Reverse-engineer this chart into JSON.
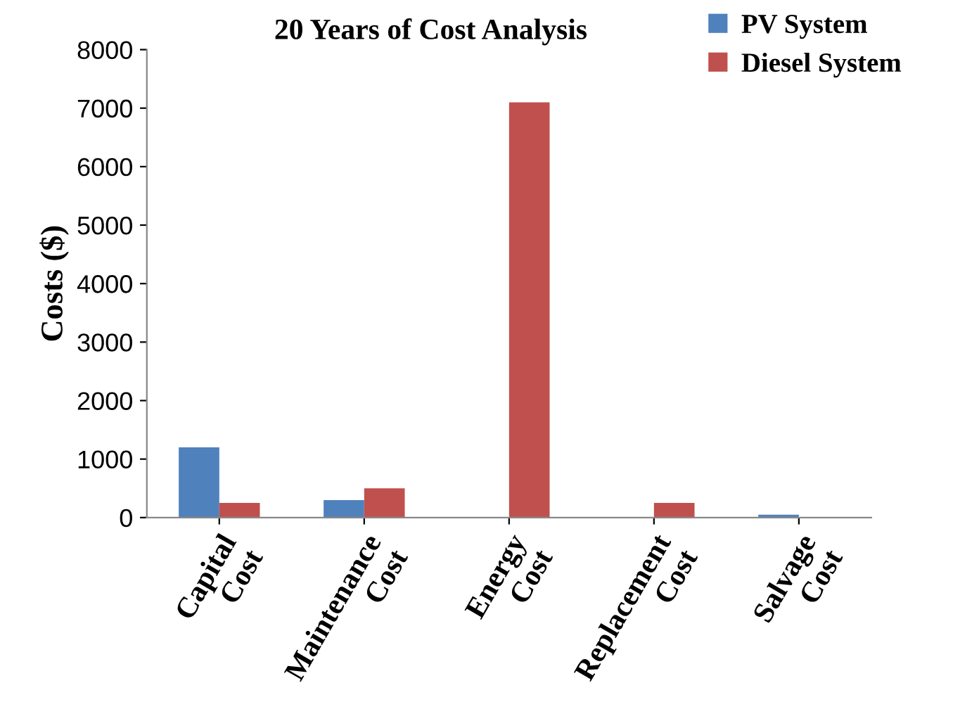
{
  "chart_data": {
    "type": "bar",
    "title": "20 Years of Cost Analysis",
    "ylabel": "Costs ($)",
    "categories": [
      "Capital\nCost",
      "Maintenance\nCost",
      "Energy\nCost",
      "Replacement\nCost",
      "Salvage\nCost"
    ],
    "series": [
      {
        "name": "PV System",
        "color": "#4f81bd",
        "values": [
          1200,
          300,
          0,
          0,
          50
        ]
      },
      {
        "name": "Diesel System",
        "color": "#c0504d",
        "values": [
          250,
          500,
          7100,
          250,
          0
        ]
      }
    ],
    "ylim": [
      0,
      8000
    ],
    "yticks": [
      0,
      1000,
      2000,
      3000,
      4000,
      5000,
      6000,
      7000,
      8000
    ],
    "grid": false,
    "legend": "top right"
  }
}
